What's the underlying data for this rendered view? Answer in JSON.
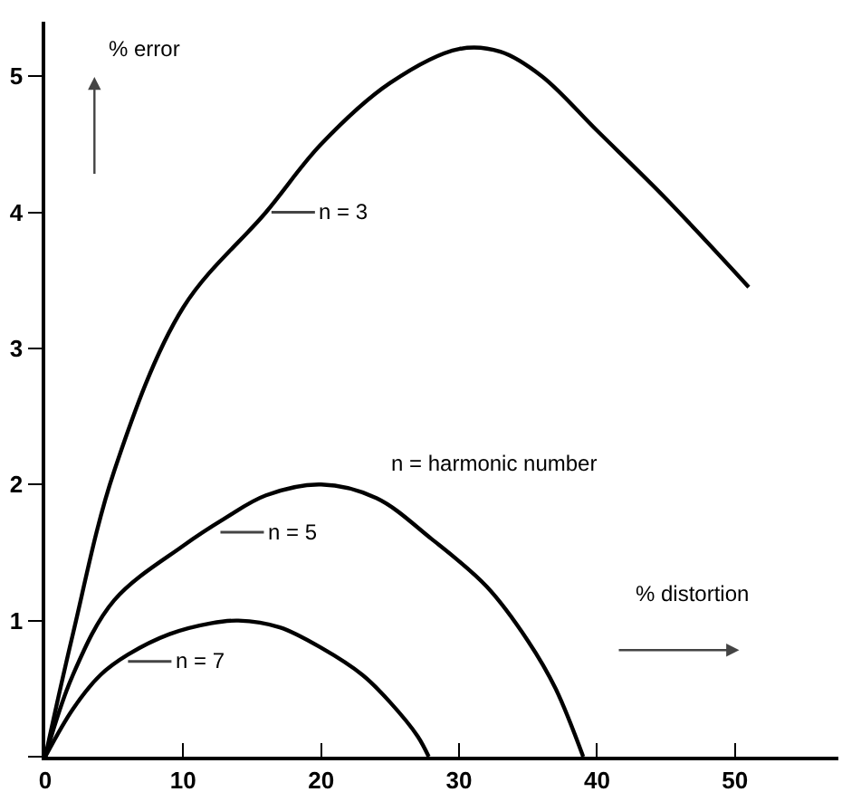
{
  "chart_data": {
    "type": "line",
    "xlabel": "% distortion",
    "ylabel": "% error",
    "xlim": [
      0,
      57.5
    ],
    "ylim": [
      0,
      5.4
    ],
    "xticks": [
      0,
      10,
      20,
      30,
      40,
      50
    ],
    "yticks": [
      {
        "value": 0,
        "label": null
      },
      1,
      2,
      3,
      4,
      5
    ],
    "grid": false,
    "marker": "none",
    "line_style": "solid",
    "series": [
      {
        "color": "#000000",
        "x": [
          0,
          2,
          5,
          10,
          16,
          20,
          25,
          30,
          33,
          36,
          40,
          45,
          51
        ],
        "values": [
          0,
          0.9,
          2.1,
          3.3,
          4.0,
          4.5,
          4.95,
          5.2,
          5.18,
          5.0,
          4.6,
          4.1,
          3.45
        ]
      },
      {
        "color": "#000000",
        "x": [
          0,
          2,
          5,
          10,
          13,
          16,
          20,
          24,
          28,
          32,
          35,
          37,
          39
        ],
        "values": [
          0,
          0.6,
          1.15,
          1.55,
          1.75,
          1.92,
          2.0,
          1.9,
          1.6,
          1.25,
          0.85,
          0.5,
          0
        ]
      },
      {
        "color": "#000000",
        "x": [
          0,
          2,
          4,
          6,
          9,
          12,
          14,
          17,
          20,
          23,
          25,
          27,
          27.8
        ],
        "values": [
          0,
          0.35,
          0.6,
          0.75,
          0.9,
          0.98,
          1.0,
          0.95,
          0.8,
          0.6,
          0.4,
          0.15,
          0
        ]
      }
    ],
    "annotations": [
      {
        "text": "n = 3",
        "x": 16.4,
        "y": 4
      },
      {
        "text": "n = 5",
        "x": 12.7,
        "y": 1.65
      },
      {
        "text": "n = 7",
        "x": 6,
        "y": 0.7
      },
      "n = harmonic number"
    ]
  }
}
